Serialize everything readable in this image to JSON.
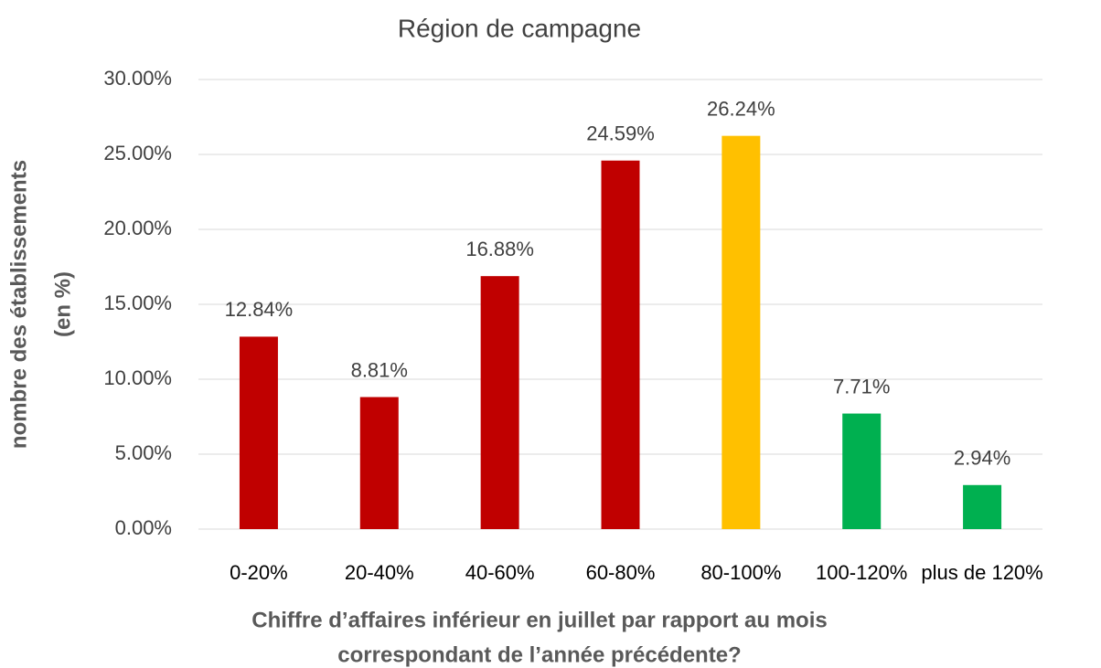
{
  "chart_data": {
    "type": "bar",
    "title": "Région de campagne",
    "categories": [
      "0-20%",
      "20-40%",
      "40-60%",
      "60-80%",
      "80-100%",
      "100-120%",
      "plus de 120%"
    ],
    "values": [
      12.84,
      8.81,
      16.88,
      24.59,
      26.24,
      7.71,
      2.94
    ],
    "value_labels": [
      "12.84%",
      "8.81%",
      "16.88%",
      "24.59%",
      "26.24%",
      "7.71%",
      "2.94%"
    ],
    "colors": [
      "#c00000",
      "#c00000",
      "#c00000",
      "#c00000",
      "#ffc000",
      "#00b050",
      "#00b050"
    ],
    "ylim": [
      0,
      30
    ],
    "yticks": [
      {
        "value": 0,
        "label": "0.00%"
      },
      {
        "value": 5,
        "label": "5.00%"
      },
      {
        "value": 10,
        "label": "10.00%"
      },
      {
        "value": 15,
        "label": "15.00%"
      },
      {
        "value": 20,
        "label": "20.00%"
      },
      {
        "value": 25,
        "label": "25.00%"
      },
      {
        "value": 30,
        "label": "30.00%"
      }
    ],
    "grid": true,
    "ylabel": [
      "nombre des établissements",
      "(en %)"
    ],
    "xlabel": [
      "Chiffre d’affaires inférieur en juillet par rapport au mois",
      "correspondant de l’année précédente?"
    ]
  }
}
